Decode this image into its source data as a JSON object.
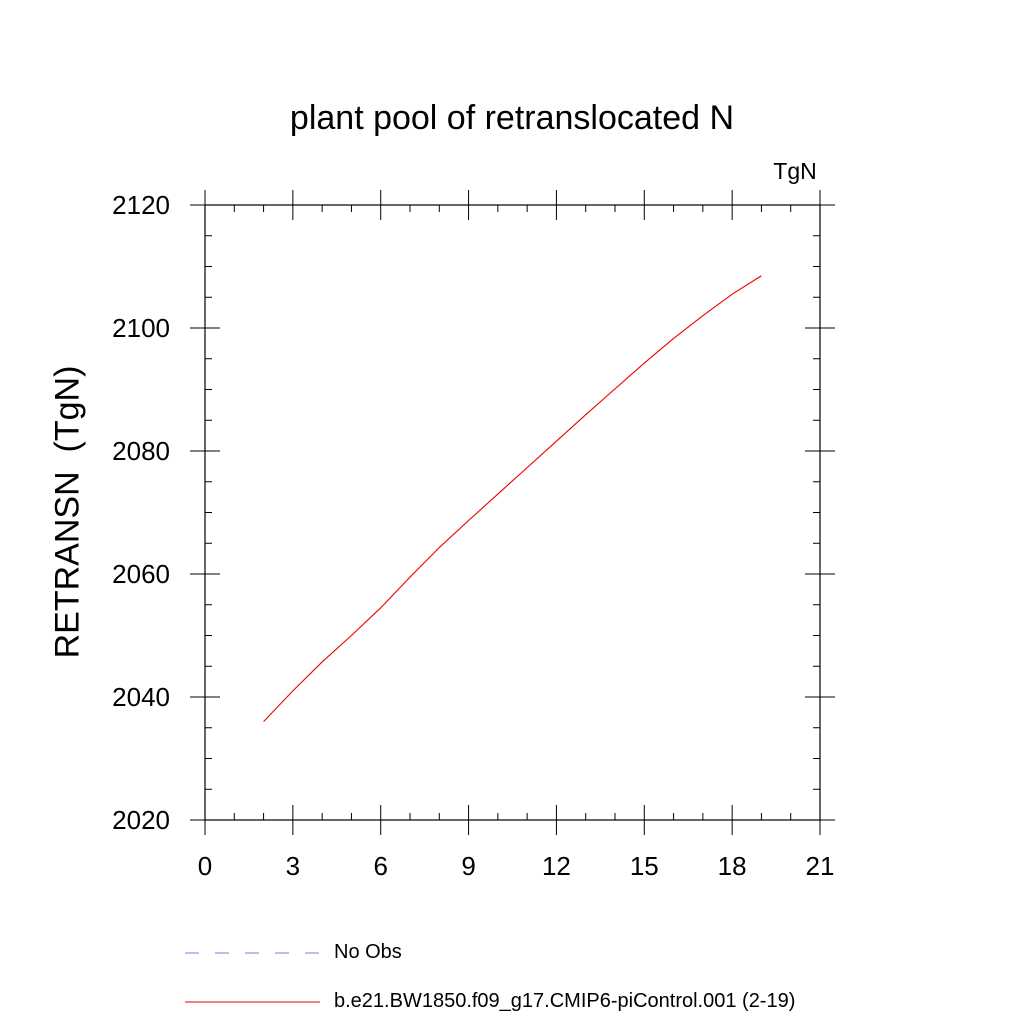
{
  "chart_data": {
    "type": "line",
    "title": "plant pool of retranslocated N",
    "units_label": "TgN",
    "ylabel": "RETRANSN  (TgN)",
    "xlabel": "",
    "xlim": [
      0,
      21
    ],
    "ylim": [
      2020,
      2120
    ],
    "xticks": [
      0,
      3,
      6,
      9,
      12,
      15,
      18,
      21
    ],
    "yticks": [
      2020,
      2040,
      2060,
      2080,
      2100,
      2120
    ],
    "x_minor_step": 1,
    "y_minor_step": 5,
    "grid": false,
    "legend_position": "bottom",
    "series": [
      {
        "name": "No Obs",
        "color": "#7b7bd6",
        "dash": "dashed",
        "x": [],
        "y": []
      },
      {
        "name": "b.e21.BW1850.f09_g17.CMIP6-piControl.001 (2-19)",
        "color": "#ee0000",
        "dash": "solid",
        "x": [
          2,
          3,
          4,
          5,
          6,
          7,
          8,
          9,
          10,
          11,
          12,
          13,
          14,
          15,
          16,
          17,
          18,
          19
        ],
        "y": [
          2036.0,
          2041.0,
          2045.7,
          2050.0,
          2054.5,
          2059.5,
          2064.3,
          2068.7,
          2073.0,
          2077.3,
          2081.6,
          2085.9,
          2090.1,
          2094.3,
          2098.3,
          2102.0,
          2105.5,
          2108.5
        ]
      }
    ]
  }
}
